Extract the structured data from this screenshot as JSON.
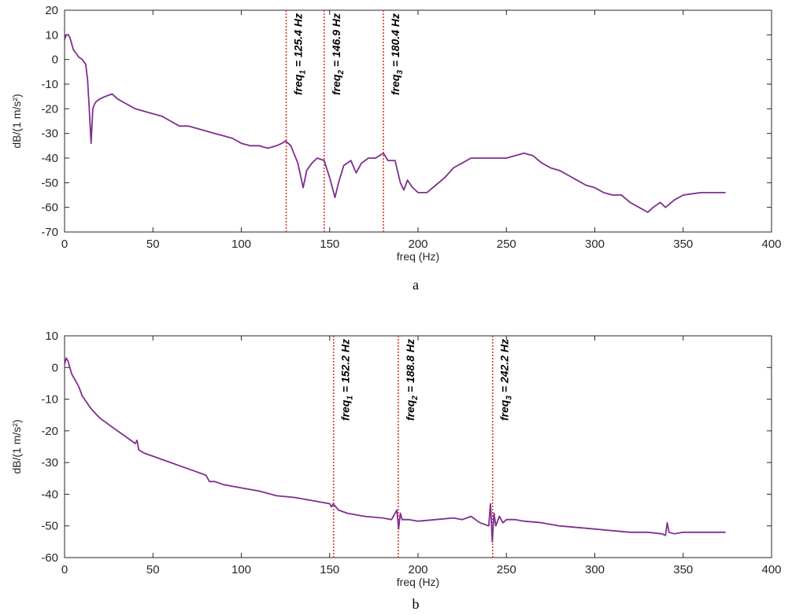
{
  "chart_data": [
    {
      "type": "line",
      "panel_label": "a",
      "xlabel": "freq (Hz)",
      "ylabel": "dB/(1 m/s²)",
      "xlim": [
        0,
        400
      ],
      "ylim": [
        -70,
        20
      ],
      "xticks": [
        0,
        50,
        100,
        150,
        200,
        250,
        300,
        350,
        400
      ],
      "yticks": [
        20,
        10,
        0,
        -10,
        -20,
        -30,
        -40,
        -50,
        -60,
        -70
      ],
      "line_color": "#7e2f8e",
      "marker_color": "#d9382a",
      "grid": false,
      "series": [
        {
          "x": [
            0,
            1,
            2,
            3,
            5,
            8,
            10,
            12,
            13,
            14,
            15,
            16,
            17,
            18,
            20,
            23,
            27,
            30,
            35,
            40,
            45,
            50,
            55,
            60,
            65,
            70,
            75,
            80,
            85,
            90,
            95,
            100,
            105,
            110,
            115,
            120,
            123,
            125,
            128,
            132,
            135,
            137,
            140,
            143,
            146.9,
            150,
            153,
            155,
            158,
            162,
            165,
            168,
            172,
            176,
            180.4,
            183,
            187,
            190,
            192,
            194,
            197,
            200,
            205,
            210,
            215,
            220,
            225,
            230,
            235,
            240,
            245,
            250,
            255,
            260,
            265,
            270,
            275,
            280,
            285,
            290,
            295,
            300,
            305,
            310,
            315,
            320,
            325,
            330,
            333,
            337,
            340,
            345,
            350,
            360,
            374
          ],
          "y": [
            8,
            10,
            10,
            9,
            4,
            1,
            0,
            -2,
            -8,
            -20,
            -34,
            -20,
            -18,
            -17,
            -16,
            -15,
            -14,
            -16,
            -18,
            -20,
            -21,
            -22,
            -23,
            -25,
            -27,
            -27,
            -28,
            -29,
            -30,
            -31,
            -32,
            -34,
            -35,
            -35,
            -36,
            -35,
            -34,
            -33,
            -35,
            -42,
            -52,
            -45,
            -42,
            -40,
            -41,
            -48,
            -56,
            -50,
            -43,
            -41,
            -46,
            -42,
            -40,
            -40,
            -38,
            -41,
            -41,
            -50,
            -53,
            -49,
            -52,
            -54,
            -54,
            -51,
            -48,
            -44,
            -42,
            -40,
            -40,
            -40,
            -40,
            -40,
            -39,
            -38,
            -39,
            -42,
            -44,
            -45,
            -47,
            -49,
            -51,
            -52,
            -54,
            -55,
            -55,
            -58,
            -60,
            -62,
            -60,
            -58,
            -60,
            -57,
            -55,
            -54,
            -54
          ]
        }
      ],
      "markers": [
        {
          "x": 125.4,
          "label_prefix": "freq",
          "sub": "1",
          "label_suffix": " = 125.4 Hz"
        },
        {
          "x": 146.9,
          "label_prefix": "freq",
          "sub": "2",
          "label_suffix": " = 146.9 Hz"
        },
        {
          "x": 180.4,
          "label_prefix": "freq",
          "sub": "3",
          "label_suffix": " = 180.4 Hz"
        }
      ]
    },
    {
      "type": "line",
      "panel_label": "b",
      "xlabel": "freq (Hz)",
      "ylabel": "dB/(1 m/s²)",
      "xlim": [
        0,
        400
      ],
      "ylim": [
        -60,
        10
      ],
      "xticks": [
        0,
        50,
        100,
        150,
        200,
        250,
        300,
        350,
        400
      ],
      "yticks": [
        10,
        0,
        -10,
        -20,
        -30,
        -40,
        -50,
        -60
      ],
      "line_color": "#7e2f8e",
      "marker_color": "#d9382a",
      "grid": false,
      "series": [
        {
          "x": [
            0,
            1,
            2,
            3,
            4,
            6,
            8,
            10,
            15,
            20,
            25,
            30,
            35,
            40,
            41,
            42,
            45,
            50,
            55,
            60,
            65,
            70,
            75,
            80,
            81,
            82,
            85,
            90,
            100,
            110,
            120,
            130,
            140,
            150,
            151,
            152,
            155,
            160,
            170,
            180,
            185,
            188,
            189,
            190,
            191,
            195,
            200,
            210,
            220,
            225,
            230,
            235,
            240,
            241,
            242,
            243,
            244,
            246,
            248,
            250,
            255,
            260,
            270,
            280,
            290,
            300,
            310,
            320,
            330,
            338,
            340,
            341,
            342,
            345,
            350,
            360,
            374
          ],
          "y": [
            1,
            3,
            2,
            0,
            -2,
            -4,
            -6,
            -9,
            -13,
            -16,
            -18,
            -20,
            -22,
            -24,
            -23,
            -26,
            -27,
            -28,
            -29,
            -30,
            -31,
            -32,
            -33,
            -34,
            -35,
            -36,
            -36,
            -37,
            -38,
            -39,
            -40.5,
            -41,
            -42,
            -43,
            -44,
            -43,
            -45,
            -46,
            -47,
            -47.5,
            -48,
            -45,
            -51,
            -46,
            -48,
            -48,
            -48.5,
            -48,
            -47.5,
            -48,
            -47,
            -49,
            -50,
            -43,
            -55,
            -46,
            -50,
            -47,
            -49,
            -48,
            -48,
            -48.5,
            -49,
            -50,
            -50.5,
            -51,
            -51.5,
            -52,
            -52,
            -52.5,
            -53,
            -49,
            -52,
            -52.5,
            -52,
            -52,
            -52
          ]
        }
      ],
      "markers": [
        {
          "x": 152.2,
          "label_prefix": "freq",
          "sub": "1",
          "label_suffix": " = 152.2 Hz"
        },
        {
          "x": 188.8,
          "label_prefix": "freq",
          "sub": "2",
          "label_suffix": " = 188.8 Hz"
        },
        {
          "x": 242.2,
          "label_prefix": "freq",
          "sub": "3",
          "label_suffix": " = 242.2 Hz"
        }
      ]
    }
  ]
}
